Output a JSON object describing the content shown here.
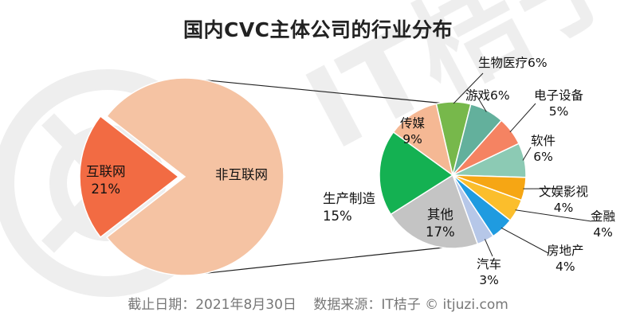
{
  "title": "国内CVC主体公司的行业分布",
  "footer": {
    "date": "截止日期：2021年8月30日",
    "source": "数据来源：IT桔子 © itjuzi.com"
  },
  "watermark_text": "IT桔子",
  "chart_data": {
    "type": "pie",
    "charts": [
      {
        "name": "main",
        "slices": [
          {
            "label": "非互联网",
            "value": 79,
            "color": "#F5C3A3"
          },
          {
            "label": "互联网",
            "value": 21,
            "value_label": "21%",
            "color": "#F26B43"
          }
        ]
      },
      {
        "name": "breakdown",
        "slices": [
          {
            "label": "生物医疗",
            "value": 6,
            "value_label": "6%",
            "color": "#77B84B"
          },
          {
            "label": "游戏",
            "value": 6,
            "value_label": "6%",
            "color": "#63B09C"
          },
          {
            "label": "电子设备",
            "value": 5,
            "value_label": "5%",
            "color": "#F58362"
          },
          {
            "label": "软件",
            "value": 6,
            "value_label": "6%",
            "color": "#8CCAB4"
          },
          {
            "label": "文娱影视",
            "value": 4,
            "value_label": "4%",
            "color": "#F6A614"
          },
          {
            "label": "金融",
            "value": 4,
            "value_label": "4%",
            "color": "#FBBE2C"
          },
          {
            "label": "房地产",
            "value": 4,
            "value_label": "4%",
            "color": "#1F9BE0"
          },
          {
            "label": "汽车",
            "value": 3,
            "value_label": "3%",
            "color": "#B6C7E8"
          },
          {
            "label": "其他",
            "value": 17,
            "value_label": "17%",
            "color": "#C4C4C4"
          },
          {
            "label": "生产制造",
            "value": 15,
            "value_label": "15%",
            "color": "#14B152"
          },
          {
            "label": "传媒",
            "value": 9,
            "value_label": "9%",
            "color": "#F5B894"
          }
        ]
      }
    ]
  }
}
